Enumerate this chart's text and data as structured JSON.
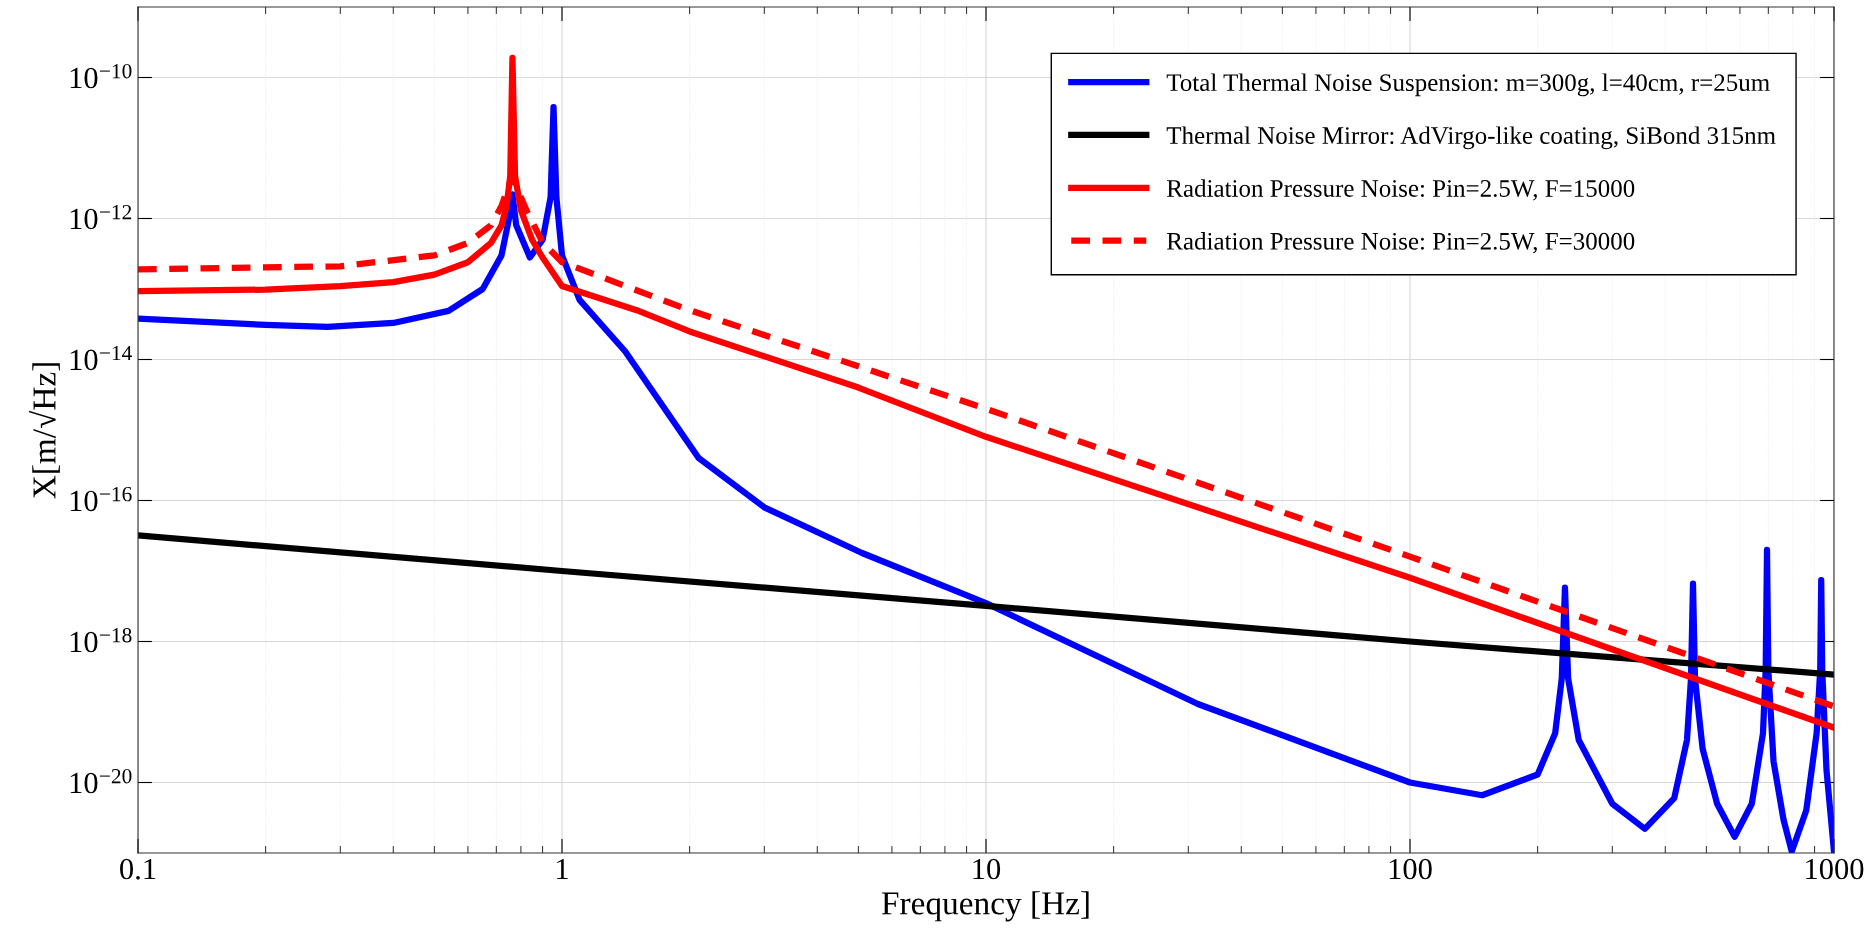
{
  "chart_data": {
    "type": "line",
    "xlabel": "Frequency [Hz]",
    "ylabel": "X[m/√Hz]",
    "log": "xy",
    "grid": true,
    "legend": "top right",
    "xlim": [
      0.1,
      1000
    ],
    "xticks": [
      0.1,
      1,
      10,
      100,
      1000
    ],
    "ylim": [
      1e-21,
      1e-09
    ],
    "yticks": [
      {
        "value": 1e-20,
        "label": "10$^{−20}$"
      },
      {
        "value": 1e-18,
        "label": "10$^{−18}$"
      },
      {
        "value": 1e-16,
        "label": "10$^{−16}$"
      },
      {
        "value": 1e-14,
        "label": "10$^{−14}$"
      },
      {
        "value": 1e-12,
        "label": "10$^{−12}$"
      },
      {
        "value": 1e-10,
        "label": "10$^{−10}$"
      }
    ],
    "series": [
      {
        "name": "Total Thermal Noise Suspension: m=300g, l=40cm, r=25um",
        "color": "#0000ff",
        "line_style": "solid",
        "x": [
          0.1,
          0.2,
          0.28,
          0.4,
          0.54,
          0.65,
          0.72,
          0.75,
          0.764,
          0.78,
          0.84,
          0.9,
          0.94,
          0.955,
          0.97,
          1,
          1.1,
          1.41,
          2.1,
          3,
          5.1,
          10,
          31.6,
          100,
          148,
          200,
          220,
          228,
          232,
          236,
          250,
          300,
          358,
          420,
          450,
          460,
          465,
          470,
          490,
          530,
          583,
          640,
          680,
          690,
          695,
          700,
          720,
          760,
          795,
          860,
          910,
          928,
          933,
          938,
          960,
          1000
        ],
        "values": [
          3.8e-14,
          3.1e-14,
          2.9e-14,
          3.3e-14,
          4.9e-14,
          1e-13,
          3e-13,
          1e-12,
          2.2e-12,
          8e-13,
          2.8e-13,
          5e-13,
          2e-12,
          3.8e-11,
          2e-12,
          3e-13,
          7e-14,
          1.3e-14,
          4e-16,
          8e-17,
          1.8e-17,
          3.5e-18,
          1.3e-19,
          1e-20,
          6.6e-21,
          1.3e-20,
          5e-20,
          3e-19,
          5.8e-18,
          3e-19,
          4e-20,
          5e-21,
          2.2e-21,
          6e-21,
          4e-20,
          3e-19,
          6.6e-18,
          3e-19,
          3e-20,
          5e-21,
          1.7e-21,
          5e-21,
          5e-20,
          4e-19,
          2e-17,
          4e-19,
          2e-20,
          3e-21,
          1.05e-21,
          4e-21,
          5e-20,
          4e-19,
          7.4e-18,
          4e-19,
          1.5e-20,
          1.05e-21
        ]
      },
      {
        "name": "Thermal Noise Mirror: AdVirgo-like coating, SiBond 315nm",
        "color": "#000000",
        "line_style": "solid",
        "x": [
          0.1,
          1,
          10,
          100,
          1000
        ],
        "values": [
          3.2e-17,
          1e-17,
          3.2e-18,
          1e-18,
          3.4e-19
        ]
      },
      {
        "name": "Radiation Pressure Noise: Pin=2.5W, F=15000",
        "color": "#ff0000",
        "line_style": "solid",
        "x": [
          0.1,
          0.2,
          0.3,
          0.4,
          0.5,
          0.6,
          0.68,
          0.72,
          0.74,
          0.755,
          0.764,
          0.775,
          0.8,
          0.85,
          0.9,
          1,
          1.5,
          2,
          5,
          10,
          100,
          1000
        ],
        "values": [
          9.3e-14,
          9.8e-14,
          1.1e-13,
          1.25e-13,
          1.6e-13,
          2.4e-13,
          4.5e-13,
          8e-13,
          1.5e-12,
          4e-12,
          1.9e-10,
          4e-12,
          1.3e-12,
          5e-13,
          2.8e-13,
          1.1e-13,
          5e-14,
          2.5e-14,
          4e-15,
          8e-16,
          8e-18,
          6e-20
        ]
      },
      {
        "name": "Radiation Pressure Noise: Pin=2.5W, F=30000",
        "color": "#ff0000",
        "line_style": "dashed",
        "x": [
          0.1,
          0.3,
          0.5,
          0.6,
          0.68,
          0.72,
          0.75,
          0.764,
          0.8,
          0.83,
          0.9,
          1,
          2,
          5,
          10,
          100,
          1000
        ],
        "values": [
          1.9e-13,
          2.1e-13,
          3e-13,
          4.5e-13,
          8e-13,
          1.5e-12,
          3e-12,
          4e-12,
          2e-12,
          1.2e-12,
          4.6e-13,
          2.4e-13,
          5e-14,
          8e-15,
          2e-15,
          1.6e-17,
          1.2e-19
        ]
      }
    ]
  }
}
